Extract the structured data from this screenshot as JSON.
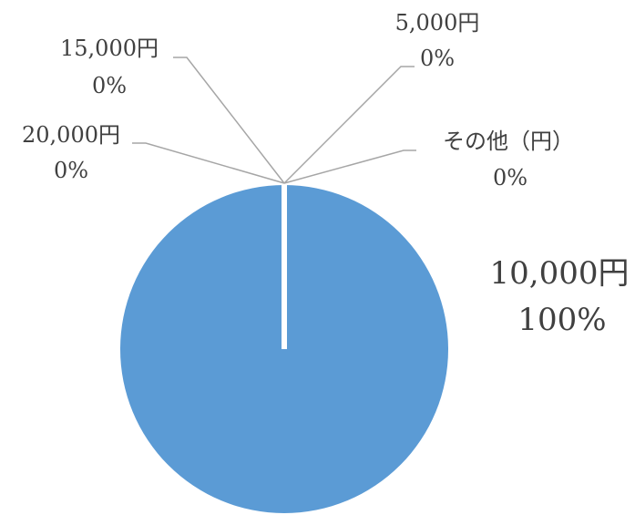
{
  "chart_data": {
    "type": "pie",
    "title": "",
    "series": [
      {
        "categories": [
          "10,000円",
          "5,000円",
          "その他（円）",
          "15,000円",
          "20,000円"
        ],
        "values": [
          100,
          0,
          0,
          0,
          0
        ],
        "percent_labels": [
          "100%",
          "0%",
          "0%",
          "0%",
          "0%"
        ]
      }
    ],
    "legend": "none",
    "colors": {
      "10,000円": "#5B9BD5",
      "separator": "#ffffff",
      "leader_lines": "#A6A6A6",
      "label_text": "#404040"
    }
  }
}
